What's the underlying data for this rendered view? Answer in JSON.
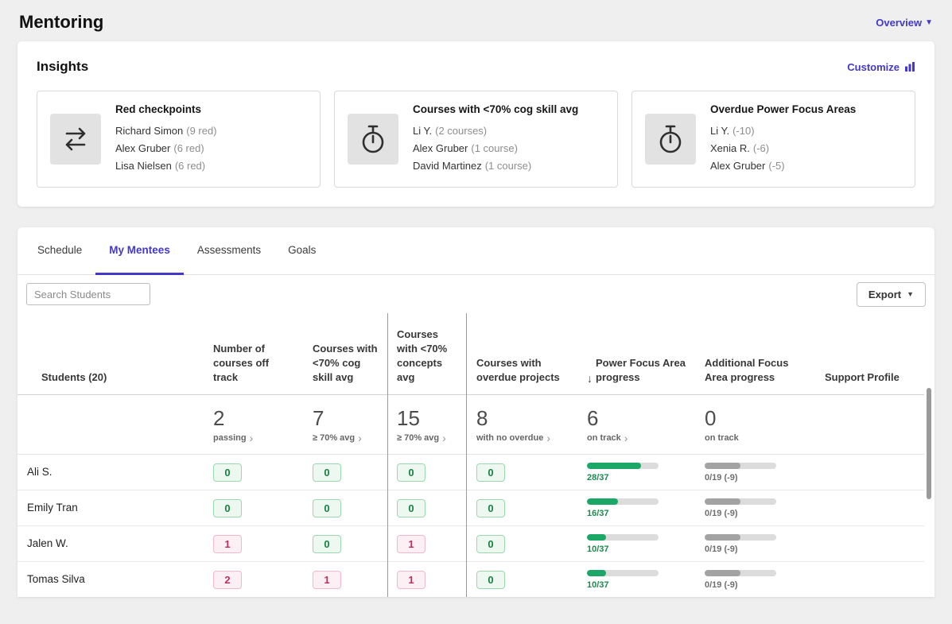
{
  "page": {
    "title": "Mentoring",
    "view_selector": "Overview"
  },
  "colors": {
    "accent": "#4338ca",
    "positive": "#1ba765",
    "negative": "#c02d5a"
  },
  "insights": {
    "title": "Insights",
    "customize_label": "Customize",
    "cards": [
      {
        "icon": "transfer-arrows-icon",
        "title": "Red checkpoints",
        "items": [
          {
            "name": "Richard Simon",
            "detail": "(9 red)"
          },
          {
            "name": "Alex Gruber",
            "detail": "(6 red)"
          },
          {
            "name": "Lisa Nielsen",
            "detail": "(6 red)"
          }
        ]
      },
      {
        "icon": "stopwatch-icon",
        "title": "Courses with <70% cog skill avg",
        "items": [
          {
            "name": "Li Y.",
            "detail": "(2 courses)"
          },
          {
            "name": "Alex Gruber",
            "detail": "(1 course)"
          },
          {
            "name": "David Martinez",
            "detail": "(1 course)"
          }
        ]
      },
      {
        "icon": "stopwatch-icon",
        "title": "Overdue Power Focus Areas",
        "items": [
          {
            "name": "Li Y.",
            "detail": "(-10)"
          },
          {
            "name": "Xenia R.",
            "detail": "(-6)"
          },
          {
            "name": "Alex Gruber",
            "detail": "(-5)"
          }
        ]
      }
    ]
  },
  "tabs": [
    {
      "label": "Schedule",
      "active": false
    },
    {
      "label": "My Mentees",
      "active": true
    },
    {
      "label": "Assessments",
      "active": false
    },
    {
      "label": "Goals",
      "active": false
    }
  ],
  "toolbar": {
    "search_placeholder": "Search Students",
    "export_label": "Export"
  },
  "table": {
    "columns": [
      "Students (20)",
      "Number of courses off track",
      "Courses with <70% cog skill avg",
      "Courses with <70% concepts avg",
      "Courses with overdue projects",
      "Power Focus Area progress",
      "Additional Focus Area progress",
      "Support Profile"
    ],
    "sorted_column": "Power Focus Area progress",
    "sort_direction": "descending",
    "summary": [
      {
        "value": "2",
        "label": "passing"
      },
      {
        "value": "7",
        "label": "≥ 70% avg"
      },
      {
        "value": "15",
        "label": "≥ 70% avg"
      },
      {
        "value": "8",
        "label": "with no overdue"
      },
      {
        "value": "6",
        "label": "on track"
      },
      {
        "value": "0",
        "label": "on track"
      }
    ],
    "rows": [
      {
        "name": "Ali S.",
        "badges": [
          {
            "value": "0",
            "tone": "green"
          },
          {
            "value": "0",
            "tone": "green"
          },
          {
            "value": "0",
            "tone": "green"
          },
          {
            "value": "0",
            "tone": "green"
          }
        ],
        "power": {
          "current": 28,
          "total": 37,
          "label": "28/37"
        },
        "additional": {
          "label": "0/19 (-9)"
        }
      },
      {
        "name": "Emily Tran",
        "badges": [
          {
            "value": "0",
            "tone": "green"
          },
          {
            "value": "0",
            "tone": "green"
          },
          {
            "value": "0",
            "tone": "green"
          },
          {
            "value": "0",
            "tone": "green"
          }
        ],
        "power": {
          "current": 16,
          "total": 37,
          "label": "16/37"
        },
        "additional": {
          "label": "0/19 (-9)"
        }
      },
      {
        "name": "Jalen W.",
        "badges": [
          {
            "value": "1",
            "tone": "pink"
          },
          {
            "value": "0",
            "tone": "green"
          },
          {
            "value": "1",
            "tone": "pink"
          },
          {
            "value": "0",
            "tone": "green"
          }
        ],
        "power": {
          "current": 10,
          "total": 37,
          "label": "10/37"
        },
        "additional": {
          "label": "0/19 (-9)"
        }
      },
      {
        "name": "Tomas Silva",
        "badges": [
          {
            "value": "2",
            "tone": "pink"
          },
          {
            "value": "1",
            "tone": "pink"
          },
          {
            "value": "1",
            "tone": "pink"
          },
          {
            "value": "0",
            "tone": "green"
          }
        ],
        "power": {
          "current": 10,
          "total": 37,
          "label": "10/37"
        },
        "additional": {
          "label": "0/19 (-9)"
        }
      }
    ]
  }
}
